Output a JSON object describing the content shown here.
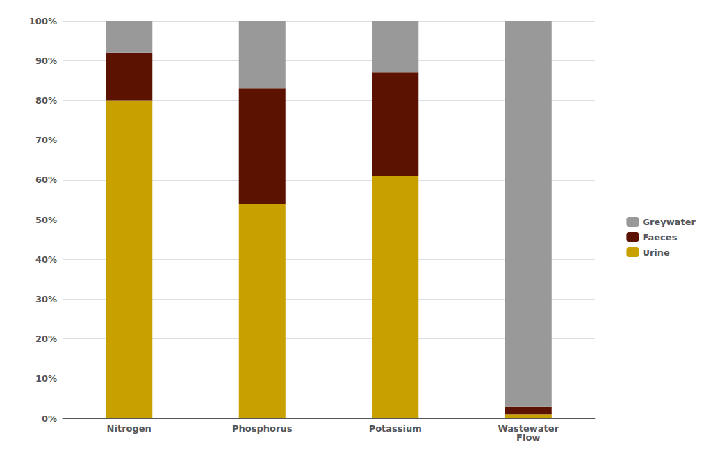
{
  "chart_data": {
    "type": "bar",
    "stacked": true,
    "categories": [
      "Nitrogen",
      "Phosphorus",
      "Potassium",
      "Wastewater\nFlow"
    ],
    "series": [
      {
        "name": "Urine",
        "color": "#C8A000",
        "values": [
          80,
          54,
          61,
          1
        ]
      },
      {
        "name": "Faeces",
        "color": "#5C1200",
        "values": [
          12,
          29,
          26,
          2
        ]
      },
      {
        "name": "Greywater",
        "color": "#999999",
        "values": [
          8,
          17,
          13,
          97
        ]
      }
    ],
    "ylim": [
      0,
      100
    ],
    "yticks": [
      {
        "value": 0,
        "label": "0%"
      },
      {
        "value": 10,
        "label": "10%"
      },
      {
        "value": 20,
        "label": "20%"
      },
      {
        "value": 30,
        "label": "30%"
      },
      {
        "value": 40,
        "label": "40%"
      },
      {
        "value": 50,
        "label": "50%"
      },
      {
        "value": 60,
        "label": "60%"
      },
      {
        "value": 70,
        "label": "70%"
      },
      {
        "value": 80,
        "label": "80%"
      },
      {
        "value": 90,
        "label": "90%"
      },
      {
        "value": 100,
        "label": "100%"
      }
    ],
    "grid": true,
    "legend": "right"
  }
}
